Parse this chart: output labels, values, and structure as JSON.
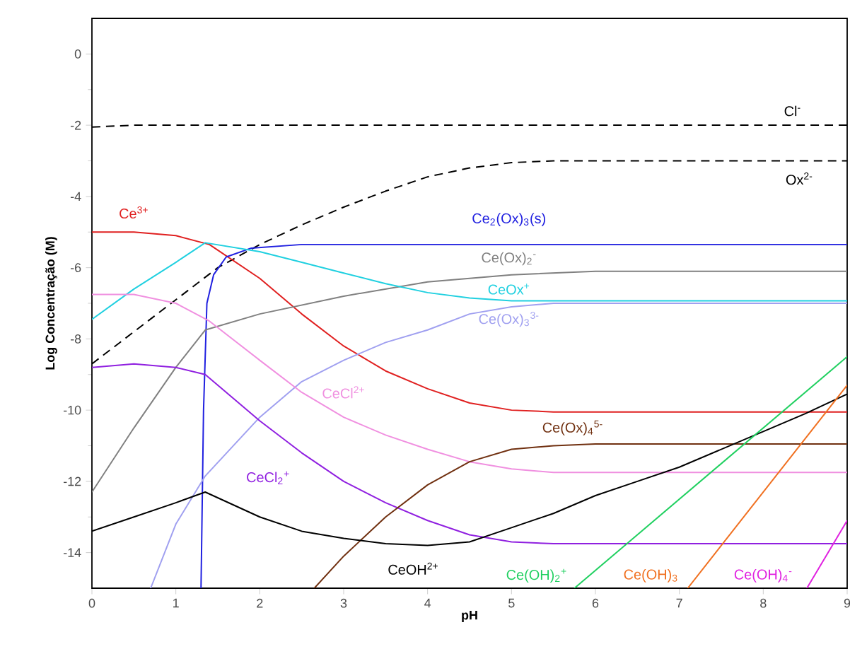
{
  "chart_data": {
    "type": "line",
    "xlabel": "pH",
    "ylabel": "Log Concentração (M)",
    "xlim": [
      0,
      9
    ],
    "ylim": [
      -15,
      1
    ],
    "xticks": [
      0,
      1,
      2,
      3,
      4,
      5,
      6,
      7,
      8,
      9
    ],
    "yticks": [
      -14,
      -12,
      -10,
      -8,
      -6,
      -4,
      -2,
      0
    ],
    "grid": false,
    "legend": false,
    "marker": "none",
    "series": [
      {
        "name": "Cl$^{-}$",
        "color": "#000000",
        "line_style": "dashed",
        "x": [
          0,
          0.5,
          9
        ],
        "values": [
          -2.05,
          -2.0,
          -2.0
        ]
      },
      {
        "name": "Ox$^{2-}$",
        "color": "#000000",
        "line_style": "dashed",
        "x": [
          0,
          0.5,
          1,
          1.5,
          2,
          2.5,
          3,
          3.5,
          4,
          4.5,
          5,
          5.5,
          9
        ],
        "values": [
          -8.7,
          -7.8,
          -6.9,
          -6.0,
          -5.35,
          -4.8,
          -4.3,
          -3.85,
          -3.45,
          -3.2,
          -3.05,
          -3.0,
          -3.0
        ]
      },
      {
        "name": "Ce$^{3+}$",
        "color": "#e02020",
        "line_style": "solid",
        "x": [
          0,
          0.5,
          1,
          1.4,
          2,
          2.5,
          3,
          3.5,
          4,
          4.5,
          5,
          5.5,
          9
        ],
        "values": [
          -5.0,
          -5.0,
          -5.1,
          -5.35,
          -6.3,
          -7.3,
          -8.2,
          -8.9,
          -9.4,
          -9.8,
          -10.0,
          -10.05,
          -10.05
        ]
      },
      {
        "name": "Ce$_{2}$(Ox)$_{3}$(s)",
        "color": "#2020e0",
        "line_style": "solid",
        "x": [
          1.3,
          1.33,
          1.37,
          1.45,
          1.6,
          1.9,
          2.5,
          9
        ],
        "values": [
          -15,
          -10,
          -7,
          -6.2,
          -5.7,
          -5.45,
          -5.35,
          -5.35
        ]
      },
      {
        "name": "Ce(Ox)$_{2}$$^{-}$",
        "color": "#808080",
        "line_style": "solid",
        "x": [
          0,
          0.5,
          1,
          1.35,
          2,
          3,
          4,
          5,
          6,
          9
        ],
        "values": [
          -12.3,
          -10.5,
          -8.8,
          -7.75,
          -7.3,
          -6.8,
          -6.4,
          -6.2,
          -6.1,
          -6.1
        ]
      },
      {
        "name": "CeOx$^{+}$",
        "color": "#20d0e0",
        "line_style": "solid",
        "x": [
          0,
          0.5,
          1,
          1.35,
          2,
          2.5,
          3,
          3.5,
          4,
          4.5,
          5,
          9
        ],
        "values": [
          -7.45,
          -6.6,
          -5.85,
          -5.3,
          -5.55,
          -5.85,
          -6.15,
          -6.45,
          -6.7,
          -6.85,
          -6.93,
          -6.93
        ]
      },
      {
        "name": "Ce(Ox)$_{3}$$^{3-}$",
        "color": "#a0a0f0",
        "line_style": "solid",
        "x": [
          0.7,
          1,
          1.35,
          2,
          2.5,
          3,
          3.5,
          4,
          4.5,
          5,
          5.5,
          9
        ],
        "values": [
          -15,
          -13.2,
          -11.85,
          -10.2,
          -9.2,
          -8.6,
          -8.1,
          -7.75,
          -7.3,
          -7.1,
          -7.0,
          -7.0
        ]
      },
      {
        "name": "CeCl$^{2+}$",
        "color": "#f090e0",
        "line_style": "solid",
        "x": [
          0,
          0.5,
          1,
          1.4,
          2,
          2.5,
          3,
          3.5,
          4,
          4.5,
          5,
          5.5,
          9
        ],
        "values": [
          -6.75,
          -6.75,
          -7.0,
          -7.5,
          -8.6,
          -9.5,
          -10.2,
          -10.7,
          -11.1,
          -11.45,
          -11.65,
          -11.75,
          -11.75
        ]
      },
      {
        "name": "CeCl$_{2}$$^{+}$",
        "color": "#9020e0",
        "line_style": "solid",
        "x": [
          0,
          0.5,
          1,
          1.35,
          2,
          2.5,
          3,
          3.5,
          4,
          4.5,
          5,
          5.5,
          9
        ],
        "values": [
          -8.8,
          -8.7,
          -8.8,
          -9.0,
          -10.3,
          -11.2,
          -12.0,
          -12.6,
          -13.1,
          -13.5,
          -13.7,
          -13.75,
          -13.75
        ]
      },
      {
        "name": "Ce(Ox)$_{4}$$^{5-}$",
        "color": "#703010",
        "line_style": "solid",
        "x": [
          2.65,
          3,
          3.5,
          4,
          4.5,
          5,
          5.5,
          6,
          9
        ],
        "values": [
          -15,
          -14.1,
          -13.0,
          -12.1,
          -11.45,
          -11.1,
          -11.0,
          -10.95,
          -10.95
        ]
      },
      {
        "name": "CeOH$^{2+}$",
        "color": "#000000",
        "line_style": "solid",
        "x": [
          0,
          0.5,
          1,
          1.35,
          2,
          2.5,
          3,
          3.5,
          4,
          4.5,
          5,
          5.5,
          6,
          6.5,
          7,
          7.5,
          8,
          8.5,
          9
        ],
        "values": [
          -13.4,
          -13.0,
          -12.6,
          -12.3,
          -13.0,
          -13.4,
          -13.6,
          -13.75,
          -13.8,
          -13.7,
          -13.3,
          -12.9,
          -12.4,
          -12.0,
          -11.6,
          -11.1,
          -10.6,
          -10.1,
          -9.55
        ]
      },
      {
        "name": "Ce(OH)$_{2}$$^{+}$",
        "color": "#20d060",
        "line_style": "solid",
        "x": [
          5.75,
          9
        ],
        "values": [
          -15,
          -8.5
        ]
      },
      {
        "name": "Ce(OH)$_{3}$",
        "color": "#f07020",
        "line_style": "solid",
        "x": [
          7.1,
          9
        ],
        "values": [
          -15,
          -9.3
        ]
      },
      {
        "name": "Ce(OH)$_{4}$$^{-}$",
        "color": "#e020e0",
        "line_style": "solid",
        "x": [
          8.52,
          9
        ],
        "values": [
          -15,
          -13.1
        ]
      }
    ]
  }
}
